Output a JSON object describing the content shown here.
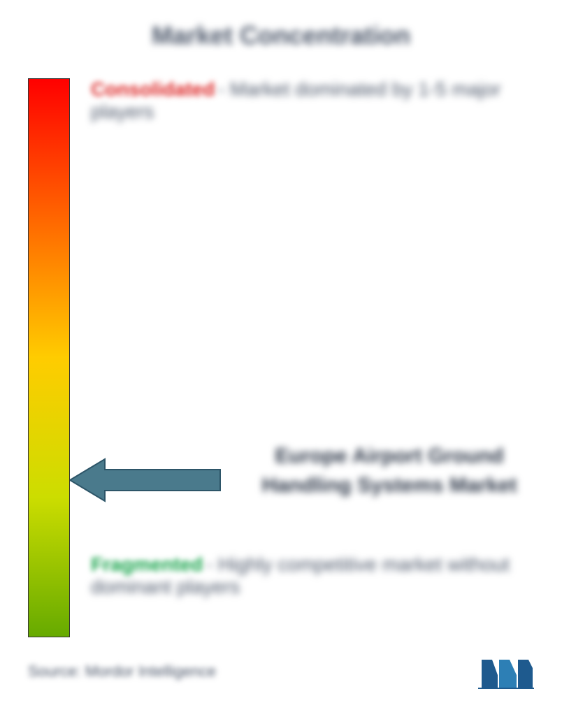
{
  "title": "Market Concentration",
  "gradient": {
    "colors": [
      "#ff0000",
      "#ff6600",
      "#ffcc00",
      "#ccdd00",
      "#66aa00"
    ],
    "border_color": "#333333"
  },
  "top_label": {
    "highlight": "Consolidated",
    "highlight_color": "#dc2626",
    "text": "- Market dominated by 1-5 major players"
  },
  "bottom_label": {
    "highlight": "Fragmented",
    "highlight_color": "#16a34a",
    "text": "- Highly competitive market without dominant players"
  },
  "market_label": "Europe Airport Ground Handling Systems Market",
  "arrow": {
    "fill_color": "#4a7a8c",
    "stroke_color": "#2d5568",
    "position_ratio": 0.68
  },
  "footer": {
    "source": "Source: Mordor Intelligence",
    "logo_colors": {
      "primary": "#1e5a8e",
      "secondary": "#2d7fb5"
    }
  },
  "background_color": "#ffffff",
  "text_color": "#4a5568",
  "title_fontsize": 36,
  "label_fontsize": 28,
  "market_label_fontsize": 30,
  "source_fontsize": 22
}
